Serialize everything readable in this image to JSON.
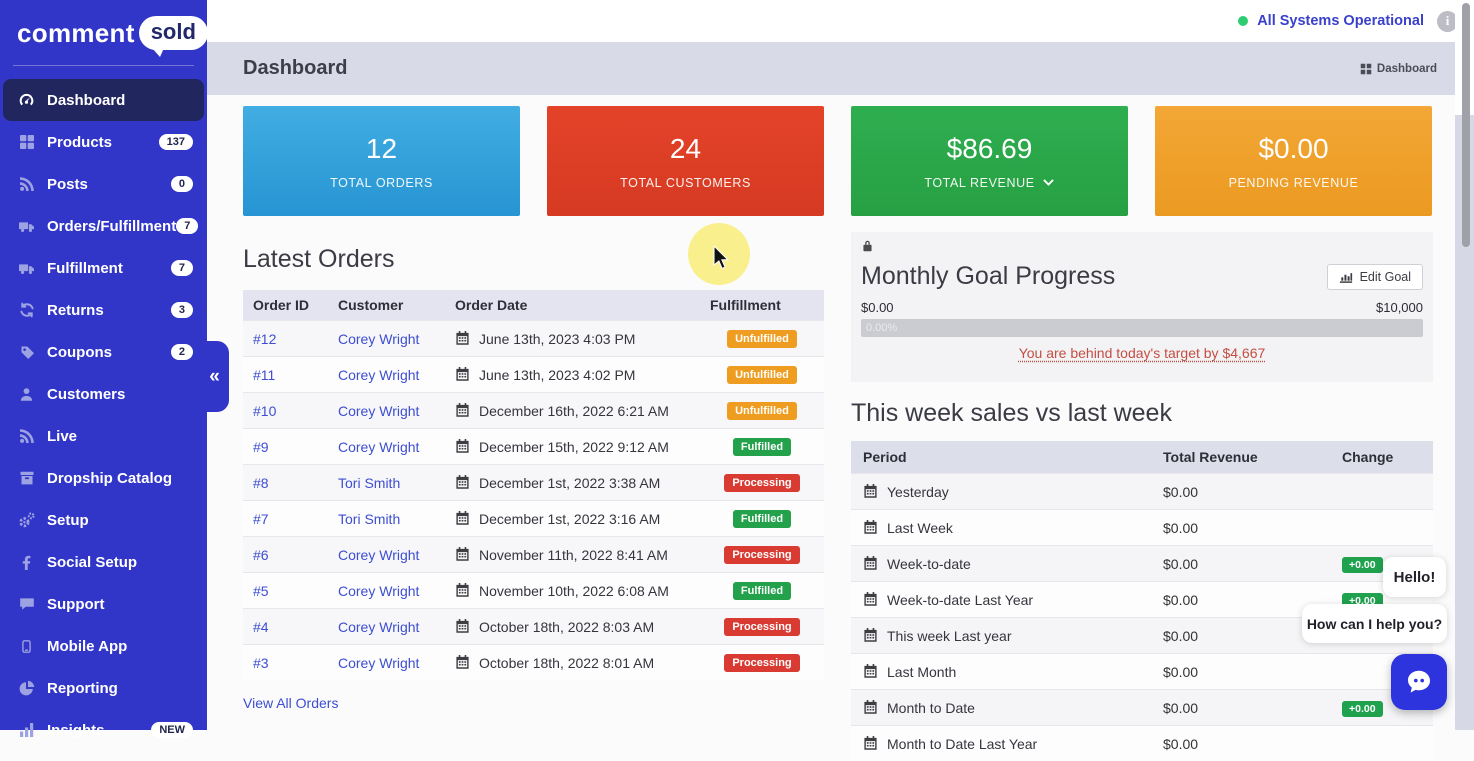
{
  "topbar": {
    "status_label": "All Systems Operational",
    "status_color": "#2ecc71",
    "info_icon_glyph": "i"
  },
  "header": {
    "title": "Dashboard",
    "breadcrumb_label": "Dashboard"
  },
  "sidebar": {
    "logo_text": "comment",
    "logo_bubble": "sold",
    "collapse_icon": "«",
    "items": [
      {
        "label": "Dashboard",
        "icon": "gauge",
        "active": true
      },
      {
        "label": "Products",
        "icon": "grid",
        "badge": "137"
      },
      {
        "label": "Posts",
        "icon": "rss",
        "badge": "0"
      },
      {
        "label": "Orders/Fulfillment",
        "icon": "truck",
        "badge": "7"
      },
      {
        "label": "Fulfillment",
        "icon": "truck",
        "badge": "7"
      },
      {
        "label": "Returns",
        "icon": "refresh",
        "badge": "3"
      },
      {
        "label": "Coupons",
        "icon": "tag",
        "badge": "2"
      },
      {
        "label": "Customers",
        "icon": "user"
      },
      {
        "label": "Live",
        "icon": "rss"
      },
      {
        "label": "Dropship Catalog",
        "icon": "box"
      },
      {
        "label": "Setup",
        "icon": "gears"
      },
      {
        "label": "Social Setup",
        "icon": "facebook"
      },
      {
        "label": "Support",
        "icon": "chat"
      },
      {
        "label": "Mobile App",
        "icon": "phone"
      },
      {
        "label": "Reporting",
        "icon": "pie"
      },
      {
        "label": "Insights",
        "icon": "bars",
        "badge": "NEW"
      }
    ]
  },
  "stat_cards": [
    {
      "value": "12",
      "label": "TOTAL ORDERS",
      "color_top": "#41ade2",
      "color_bottom": "#2795d3",
      "dropdown": false
    },
    {
      "value": "24",
      "label": "TOTAL CUSTOMERS",
      "color_top": "#e34329",
      "color_bottom": "#d63a22",
      "dropdown": false
    },
    {
      "value": "$86.69",
      "label": "TOTAL REVENUE",
      "color_top": "#2fae50",
      "color_bottom": "#26a043",
      "dropdown": true
    },
    {
      "value": "$0.00",
      "label": "PENDING REVENUE",
      "color_top": "#f3a736",
      "color_bottom": "#eb9a21",
      "dropdown": false
    }
  ],
  "latest_orders": {
    "title": "Latest Orders",
    "columns": [
      "Order ID",
      "Customer",
      "Order Date",
      "Fulfillment"
    ],
    "view_all_label": "View All Orders",
    "link_color": "#3d4ed1",
    "status_colors": {
      "Unfulfilled": "#ef9d20",
      "Fulfilled": "#23a14b",
      "Processing": "#d93a31"
    },
    "rows": [
      {
        "id": "#12",
        "customer": "Corey Wright",
        "date": "June 13th, 2023 4:03 PM",
        "status": "Unfulfilled"
      },
      {
        "id": "#11",
        "customer": "Corey Wright",
        "date": "June 13th, 2023 4:02 PM",
        "status": "Unfulfilled"
      },
      {
        "id": "#10",
        "customer": "Corey Wright",
        "date": "December 16th, 2022 6:21 AM",
        "status": "Unfulfilled"
      },
      {
        "id": "#9",
        "customer": "Corey Wright",
        "date": "December 15th, 2022 9:12 AM",
        "status": "Fulfilled"
      },
      {
        "id": "#8",
        "customer": "Tori Smith",
        "date": "December 1st, 2022 3:38 AM",
        "status": "Processing"
      },
      {
        "id": "#7",
        "customer": "Tori Smith",
        "date": "December 1st, 2022 3:16 AM",
        "status": "Fulfilled"
      },
      {
        "id": "#6",
        "customer": "Corey Wright",
        "date": "November 11th, 2022 8:41 AM",
        "status": "Processing"
      },
      {
        "id": "#5",
        "customer": "Corey Wright",
        "date": "November 10th, 2022 6:08 AM",
        "status": "Fulfilled"
      },
      {
        "id": "#4",
        "customer": "Corey Wright",
        "date": "October 18th, 2022 8:03 AM",
        "status": "Processing"
      },
      {
        "id": "#3",
        "customer": "Corey Wright",
        "date": "October 18th, 2022 8:01 AM",
        "status": "Processing"
      }
    ]
  },
  "goal": {
    "title": "Monthly Goal Progress",
    "edit_button_label": "Edit Goal",
    "range_min": "$0.00",
    "range_max": "$10,000",
    "progress_percent": "0.00%",
    "warning_text": "You are behind today's target by $4,667",
    "warning_color": "#c44e42"
  },
  "weekly_sales": {
    "title": "This week sales vs last week",
    "columns": [
      "Period",
      "Total Revenue",
      "Change"
    ],
    "change_color": "#1fa14e",
    "rows": [
      {
        "period": "Yesterday",
        "revenue": "$0.00",
        "change": ""
      },
      {
        "period": "Last Week",
        "revenue": "$0.00",
        "change": ""
      },
      {
        "period": "Week-to-date",
        "revenue": "$0.00",
        "change": "+0.00"
      },
      {
        "period": "Week-to-date Last Year",
        "revenue": "$0.00",
        "change": "+0.00"
      },
      {
        "period": "This week Last year",
        "revenue": "$0.00",
        "change": ""
      },
      {
        "period": "Last Month",
        "revenue": "$0.00",
        "change": ""
      },
      {
        "period": "Month to Date",
        "revenue": "$0.00",
        "change": "+0.00"
      },
      {
        "period": "Month to Date Last Year",
        "revenue": "$0.00",
        "change": ""
      }
    ]
  },
  "chat": {
    "bubble1": "Hello!",
    "bubble2": "How can I help you?",
    "button_color": "#2d33dd"
  }
}
